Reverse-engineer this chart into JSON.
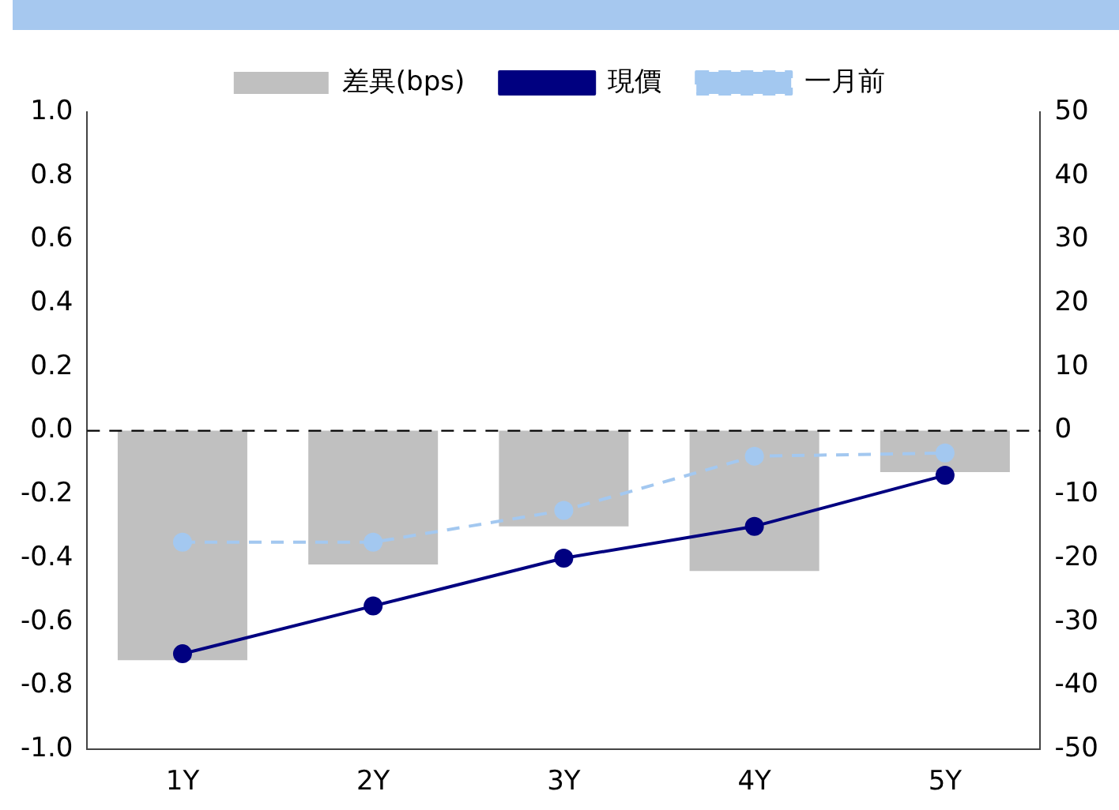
{
  "chart_data": {
    "type": "bar",
    "categories": [
      "1Y",
      "2Y",
      "3Y",
      "4Y",
      "5Y"
    ],
    "series": [
      {
        "name": "差異(bps)",
        "axis": "y2",
        "color": "#c0c0c0",
        "values": [
          -36,
          -21,
          -15,
          -22,
          -6.5
        ]
      },
      {
        "name": "現價",
        "type": "line",
        "color": "#000080",
        "line_style": "solid",
        "values": [
          -0.7,
          -0.55,
          -0.4,
          -0.3,
          -0.14
        ]
      },
      {
        "name": "一月前",
        "type": "line",
        "color": "#a3c8f0",
        "line_style": "dashed",
        "values": [
          -0.35,
          -0.35,
          -0.25,
          -0.08,
          -0.07
        ]
      }
    ],
    "marker": "circle",
    "ylim": [
      -1,
      1
    ],
    "yticks": [
      {
        "value": -1,
        "label": "-1.0"
      },
      {
        "value": -0.8,
        "label": "-0.8"
      },
      {
        "value": -0.6,
        "label": "-0.6"
      },
      {
        "value": -0.4,
        "label": "-0.4"
      },
      {
        "value": -0.2,
        "label": "-0.2"
      },
      {
        "value": 0,
        "label": "0.0"
      },
      {
        "value": 0.2,
        "label": "0.2"
      },
      {
        "value": 0.4,
        "label": "0.4"
      },
      {
        "value": 0.6,
        "label": "0.6"
      },
      {
        "value": 0.8,
        "label": "0.8"
      },
      {
        "value": 1,
        "label": "1.0"
      }
    ],
    "y2lim": [
      -50,
      50
    ],
    "y2ticks": [
      -50,
      -40,
      -30,
      -20,
      -10,
      0,
      10,
      20,
      30,
      40,
      50
    ],
    "ref_lines": [
      {
        "axis": "y",
        "value": 0,
        "color": "#000000",
        "line_style": "dashed"
      }
    ],
    "legend": "top",
    "grid": false
  }
}
